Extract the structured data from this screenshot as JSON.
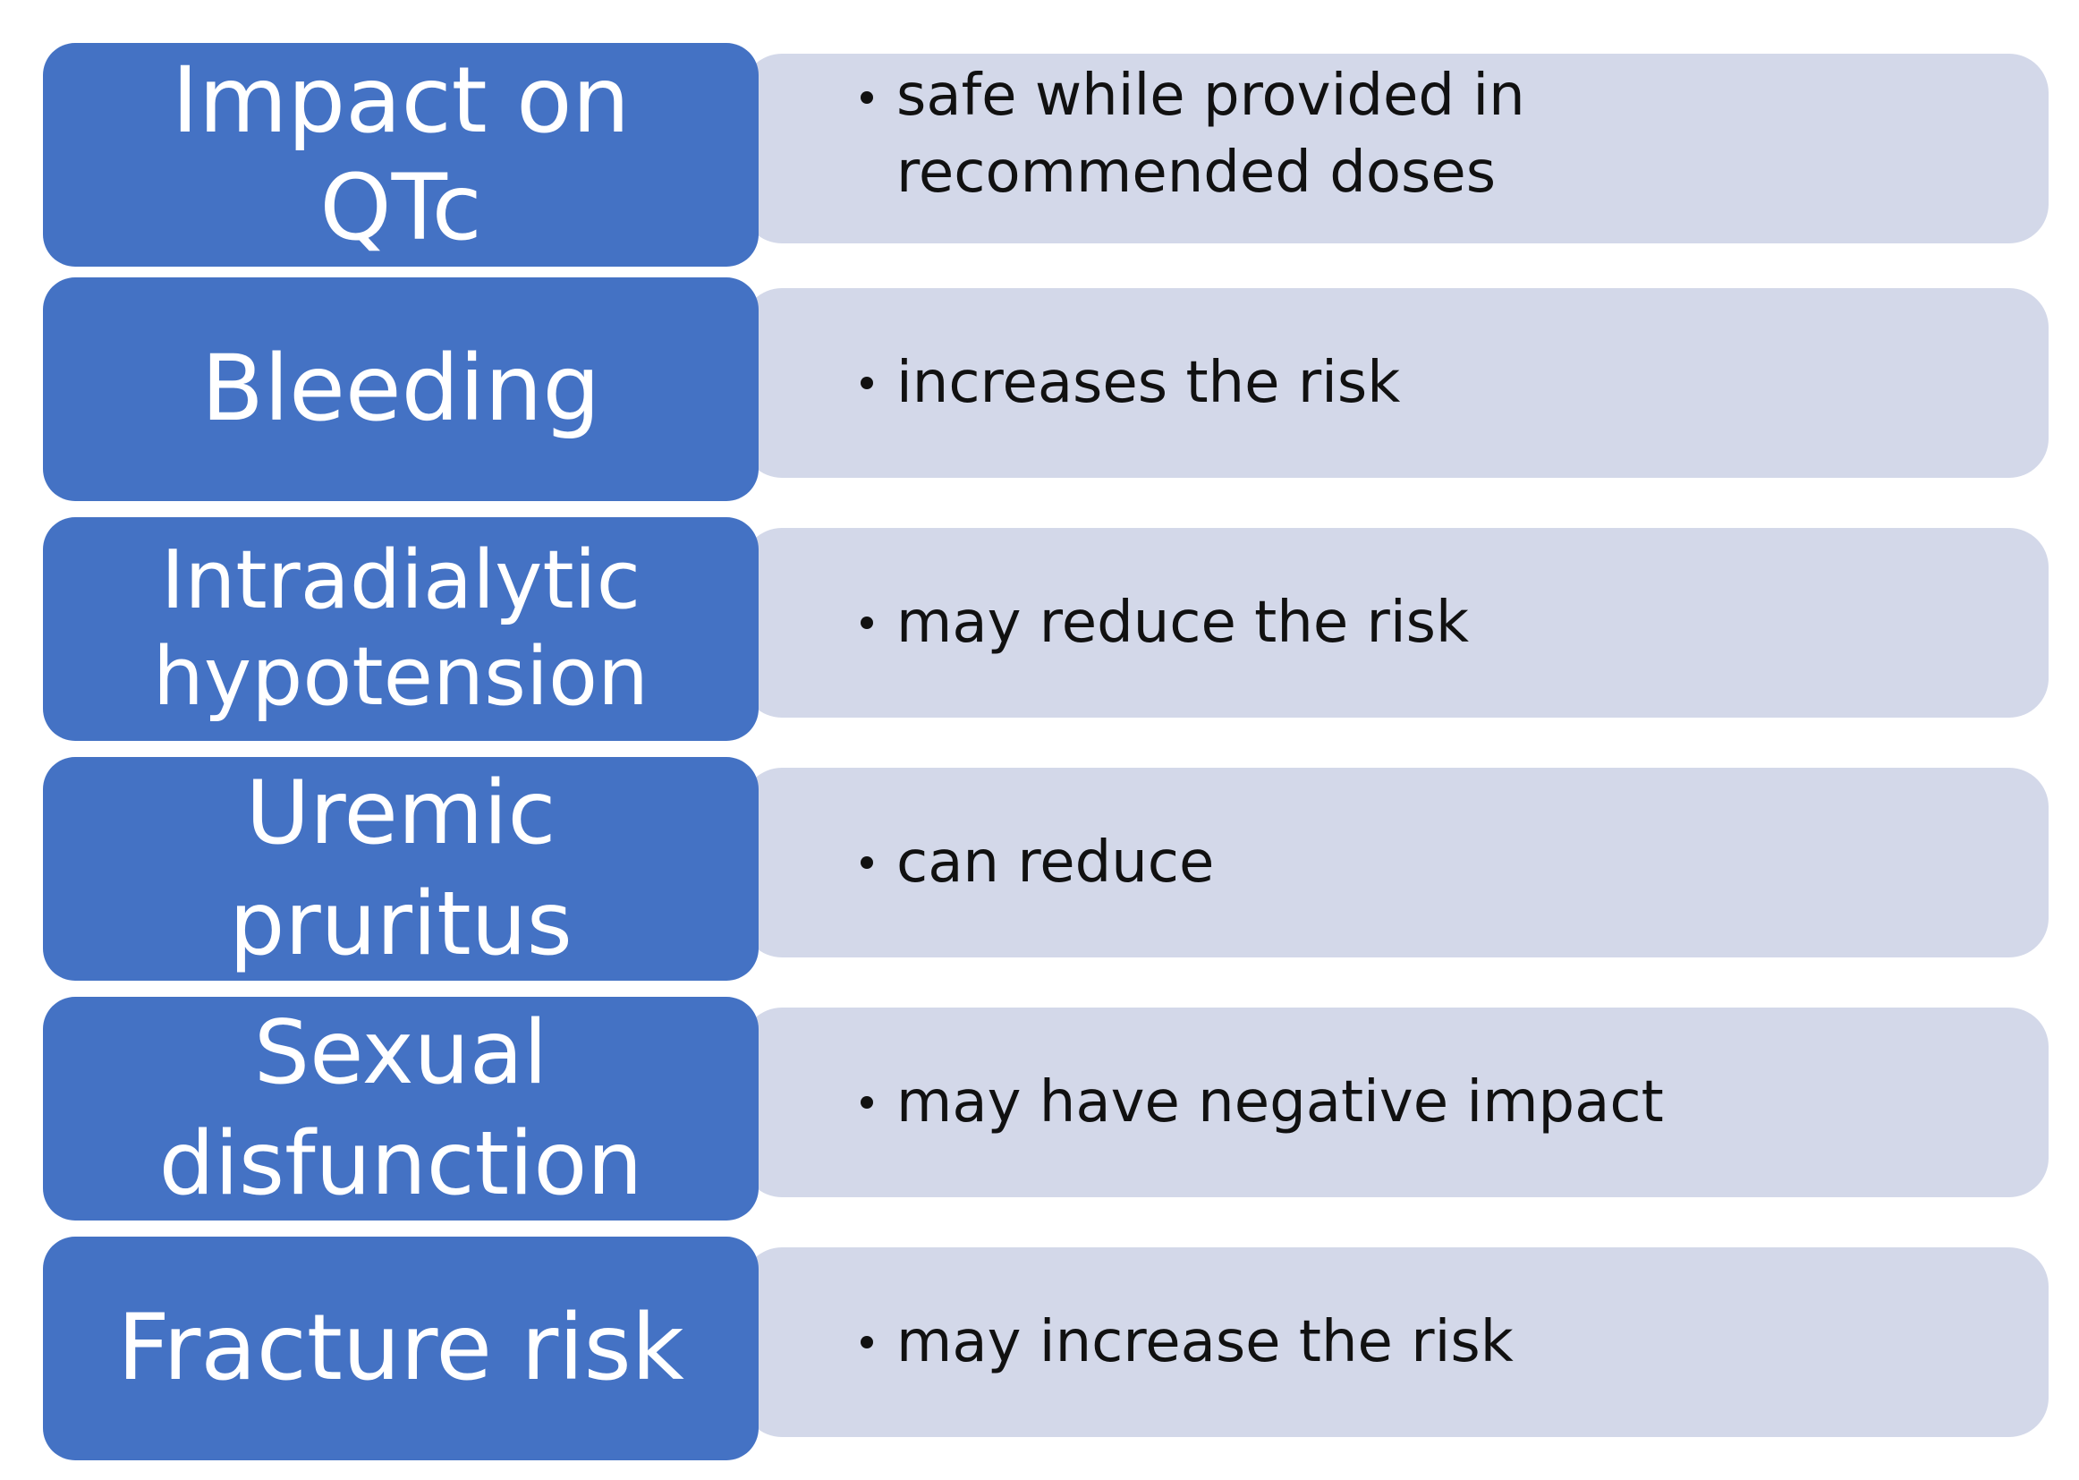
{
  "rows": [
    {
      "label": "Impact on QTc",
      "detail": "safe while provided in recommended doses"
    },
    {
      "label": "Bleeding",
      "detail": "increases the risk"
    },
    {
      "label": "Intradialytic hypotension",
      "detail": "may reduce the risk"
    },
    {
      "label": "Uremic pruritus",
      "detail": "can reduce"
    },
    {
      "label": "Sexual disfunction",
      "detail": "may have negative impact"
    },
    {
      "label": "Fracture risk",
      "detail": "may increase the risk"
    }
  ],
  "colors": {
    "label_fill": "#4472c4",
    "detail_fill": "#d3d8e9",
    "label_text": "#ffffff",
    "detail_text": "#111111"
  }
}
